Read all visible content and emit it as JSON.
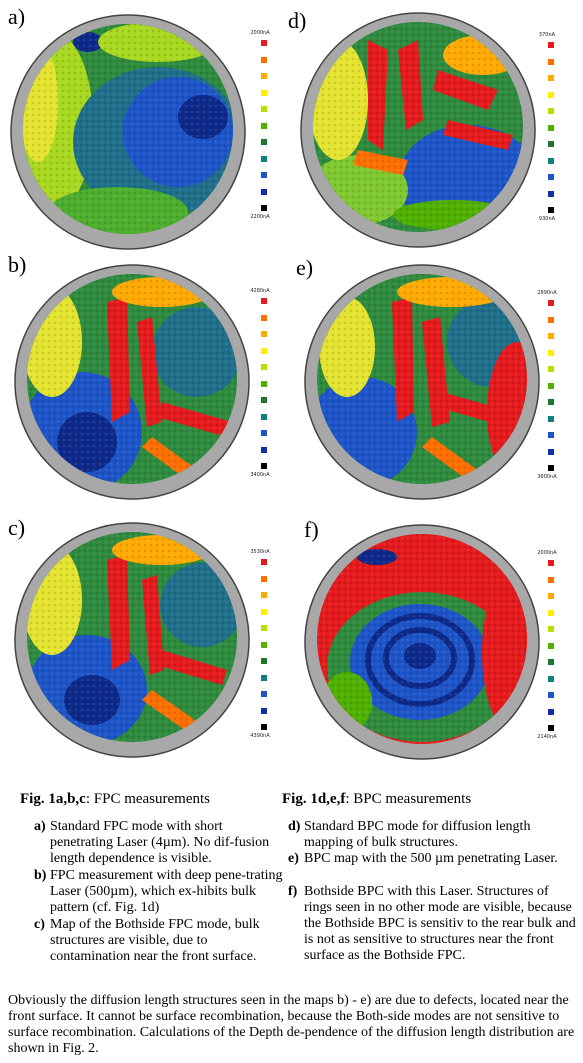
{
  "panels": [
    {
      "id": "a",
      "label": "a)",
      "legend_top": "2000nA",
      "legend_bottom": "2200nA"
    },
    {
      "id": "d",
      "label": "d)",
      "legend_top": "370nA",
      "legend_bottom": "930nA"
    },
    {
      "id": "b",
      "label": "b)",
      "legend_top": "4280nA",
      "legend_bottom": "3400nA"
    },
    {
      "id": "e",
      "label": "e)",
      "legend_top": "2890nA",
      "legend_bottom": "3600nA"
    },
    {
      "id": "c",
      "label": "c)",
      "legend_top": "3530nA",
      "legend_bottom": "4390nA"
    },
    {
      "id": "f",
      "label": "f)",
      "legend_top": "2000nA",
      "legend_bottom": "2140nA"
    }
  ],
  "legend_colors": [
    "#e41a1c",
    "#ff6f00",
    "#ffaa00",
    "#ffee00",
    "#b7e000",
    "#50b000",
    "#1e7a2a",
    "#118080",
    "#1d55c8",
    "#1030a8",
    "#000000"
  ],
  "captions": {
    "left_bold": "Fig. 1a,b,c",
    "left_rest": ": FPC measurements",
    "right_bold": "Fig. 1d,e,f",
    "right_rest": ": BPC measurements"
  },
  "items_left": [
    {
      "key": "a)",
      "text": "Standard FPC mode with short penetrating Laser (4µm). No dif-fusion length dependence is visible."
    },
    {
      "key": "b)",
      "text": "FPC measurement with deep pene-trating Laser (500µm), which ex-hibits bulk pattern (cf. Fig. 1d)"
    },
    {
      "key": "c)",
      "text": "Map of the Bothside FPC mode, bulk structures are visible, due to contamination near the front surface."
    }
  ],
  "items_right": [
    {
      "key": "d)",
      "text": "Standard BPC mode for diffusion length mapping of bulk structures."
    },
    {
      "key": "e)",
      "text": "BPC map with the 500 µm penetrating Laser."
    },
    {
      "key": "f)",
      "text": "Bothside BPC with this Laser. Structures of rings seen in no other mode are visible, because the Bothside BPC is sensitiv to the rear bulk and is not as sensitive to structures near the front surface as the Bothside FPC."
    }
  ],
  "paragraph": "Obviously the diffusion length structures seen in the maps b) - e) are due to defects, located near the front surface. It cannot be surface recombination, because the Both-side modes are not sensitive to surface recombination. Calculations of the Depth de-pendence of the diffusion length distribution are shown in Fig. 2."
}
